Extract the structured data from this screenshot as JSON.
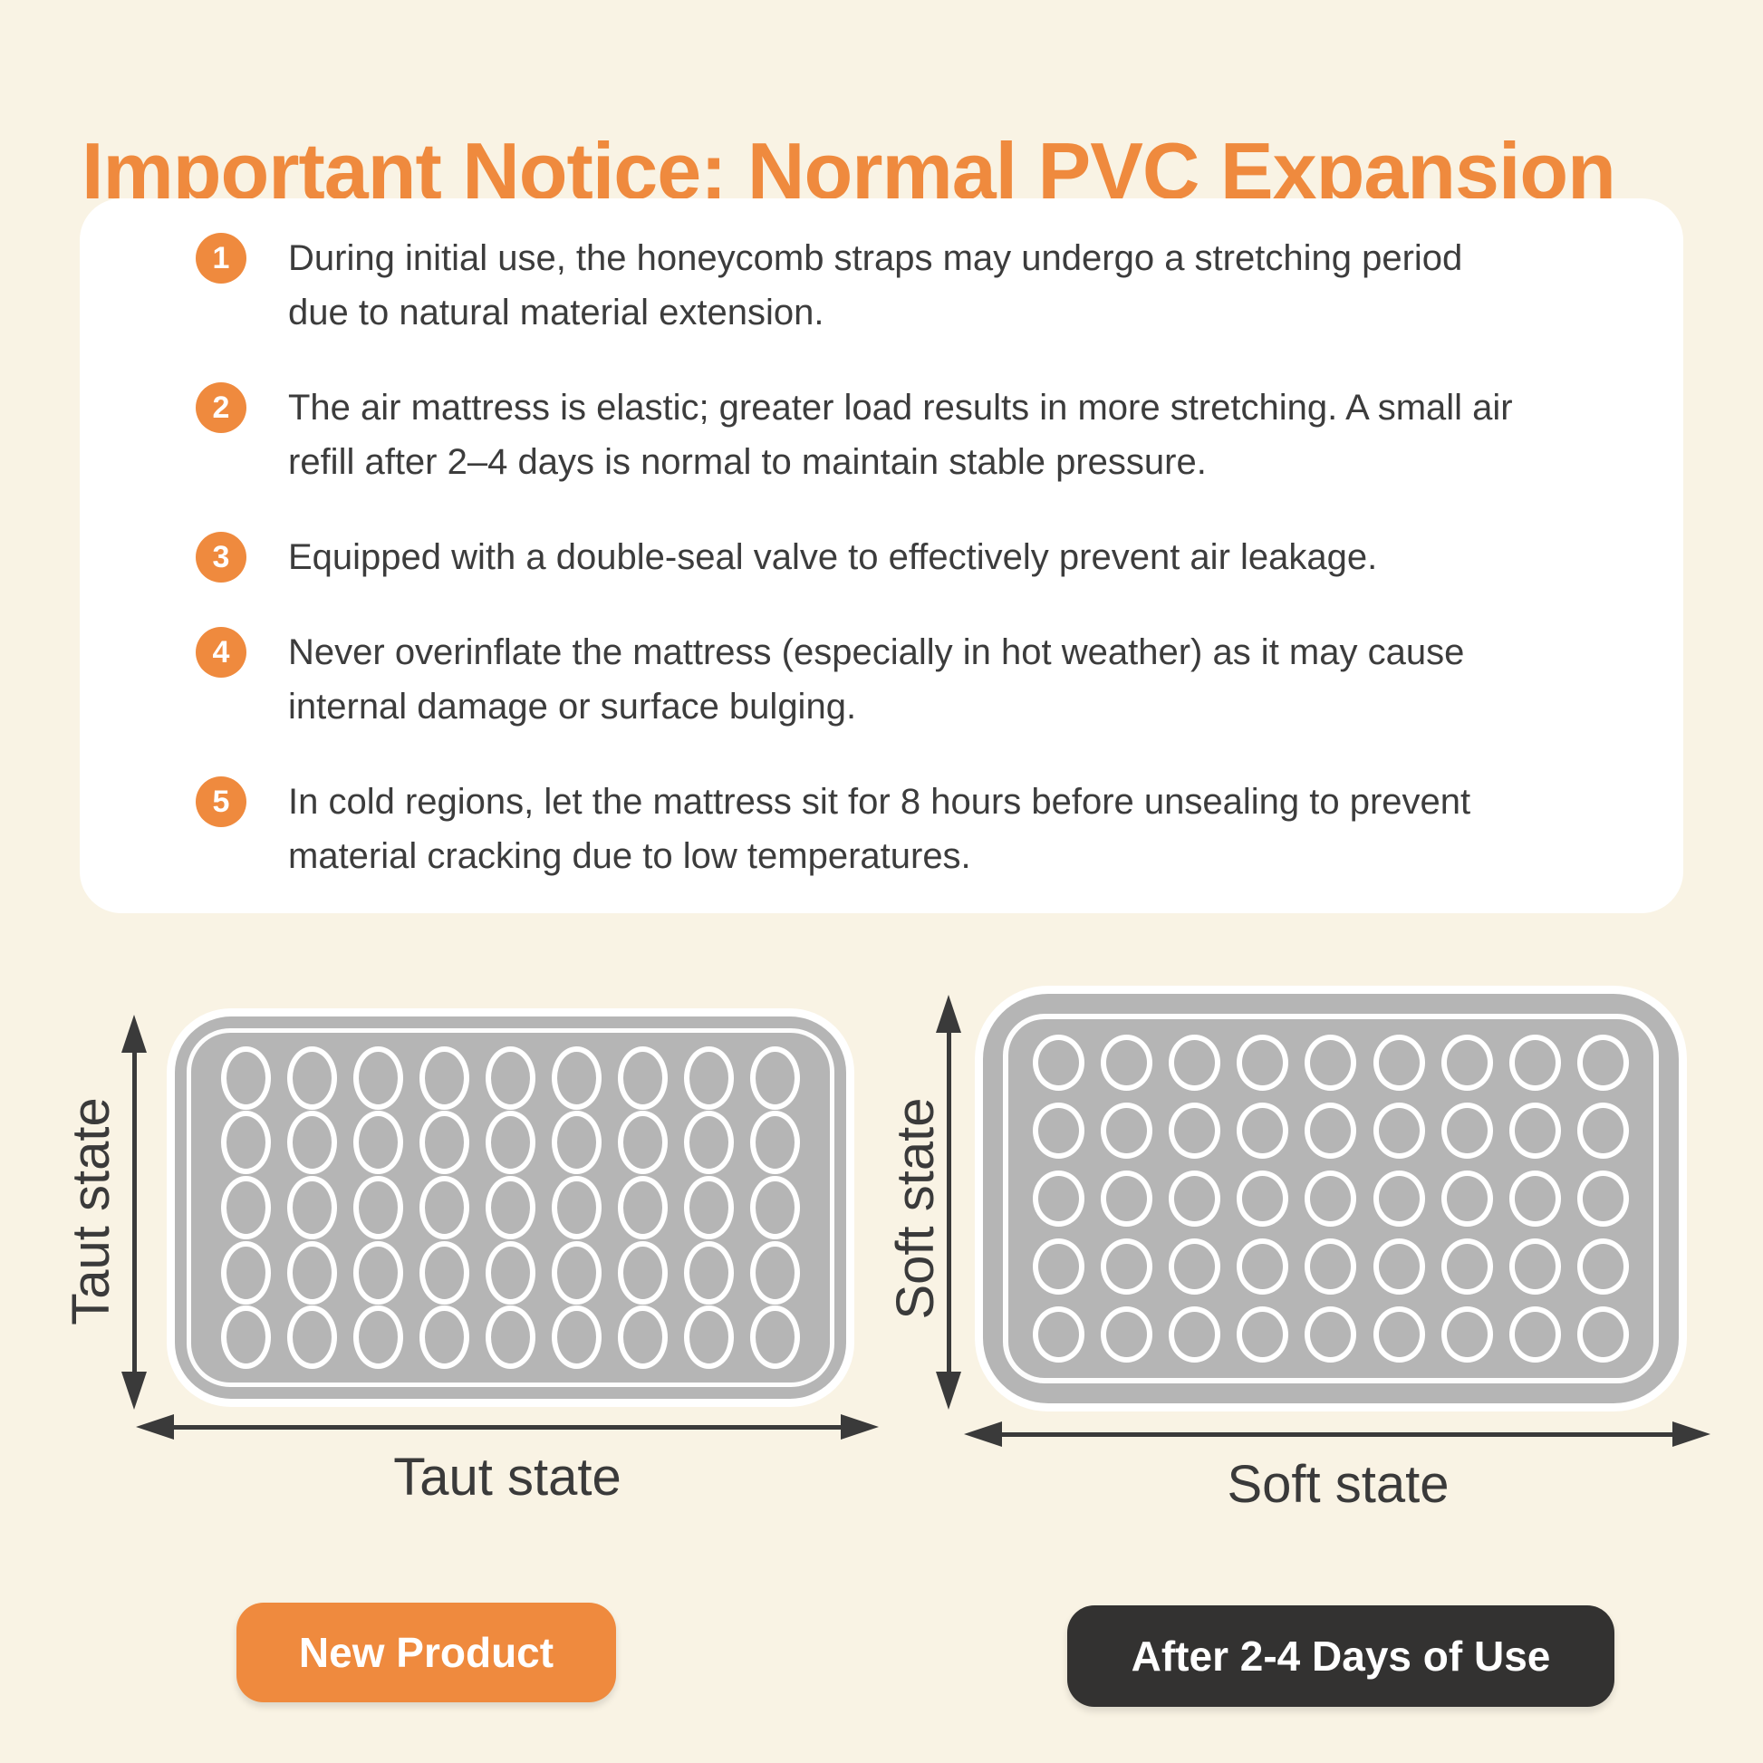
{
  "page": {
    "title": "Important Notice: Normal PVC Expansion",
    "colors": {
      "background": "#F9F3E4",
      "accent_orange": "#EF8A3E",
      "card_white": "#FFFFFF",
      "text_dark": "#3C3C3C",
      "mattress_gray": "#B5B5B5",
      "arrow_dark": "#3A3A3A",
      "dark_pill": "#333231"
    }
  },
  "notices": [
    {
      "number": "1",
      "text": "During initial use, the honeycomb straps may undergo a stretching period\ndue to natural material extension."
    },
    {
      "number": "2",
      "text": "The air mattress is elastic; greater load results in more stretching. A small air\nrefill after 2–4 days is normal to maintain stable pressure."
    },
    {
      "number": "3",
      "text": "Equipped with a double-seal valve to effectively prevent air leakage."
    },
    {
      "number": "4",
      "text": "Never overinflate the mattress (especially in hot weather) as it may cause\ninternal damage or surface bulging."
    },
    {
      "number": "5",
      "text": "In cold regions, let the mattress sit for 8 hours before unsealing to prevent\nmaterial cracking due to low temperatures."
    }
  ],
  "diagrams": {
    "left": {
      "vertical_label": "Taut state",
      "horizontal_label": "Taut state",
      "caption": "New Product",
      "grid": {
        "rows": 5,
        "cols": 9
      }
    },
    "right": {
      "vertical_label": "Soft state",
      "horizontal_label": "Soft state",
      "caption": "After 2-4 Days of Use",
      "grid": {
        "rows": 5,
        "cols": 9
      }
    }
  }
}
